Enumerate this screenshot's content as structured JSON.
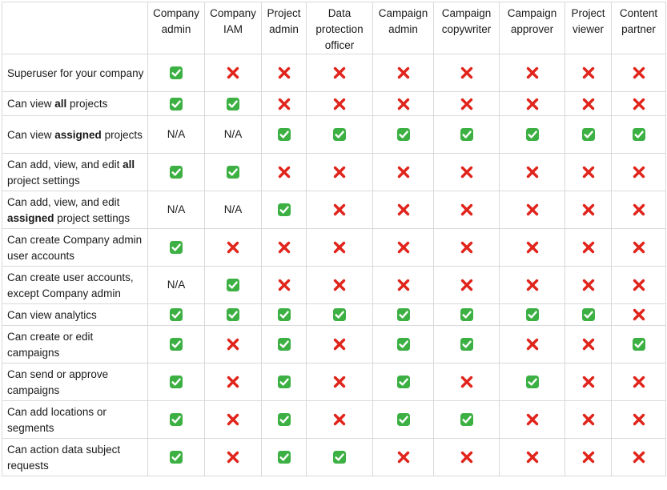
{
  "table": {
    "columns": [
      "Company admin",
      "Company IAM",
      "Project admin",
      "Data protection officer",
      "Campaign admin",
      "Campaign copywriter",
      "Campaign approver",
      "Project viewer",
      "Content partner"
    ],
    "rows": [
      {
        "label": [
          {
            "t": "Superuser for your company"
          }
        ],
        "values": [
          "yes",
          "no",
          "no",
          "no",
          "no",
          "no",
          "no",
          "no",
          "no"
        ]
      },
      {
        "label": [
          {
            "t": "Can view "
          },
          {
            "t": "all",
            "b": true
          },
          {
            "t": " projects"
          }
        ],
        "values": [
          "yes",
          "yes",
          "no",
          "no",
          "no",
          "no",
          "no",
          "no",
          "no"
        ]
      },
      {
        "label": [
          {
            "t": "Can view "
          },
          {
            "t": "assigned",
            "b": true
          },
          {
            "t": " projects"
          }
        ],
        "values": [
          "N/A",
          "N/A",
          "yes",
          "yes",
          "yes",
          "yes",
          "yes",
          "yes",
          "yes"
        ]
      },
      {
        "label": [
          {
            "t": "Can add, view, and edit "
          },
          {
            "t": "all",
            "b": true
          },
          {
            "t": " project settings"
          }
        ],
        "values": [
          "yes",
          "yes",
          "no",
          "no",
          "no",
          "no",
          "no",
          "no",
          "no"
        ]
      },
      {
        "label": [
          {
            "t": "Can add, view, and edit "
          },
          {
            "t": "assigned",
            "b": true
          },
          {
            "t": " project settings"
          }
        ],
        "values": [
          "N/A",
          "N/A",
          "yes",
          "no",
          "no",
          "no",
          "no",
          "no",
          "no"
        ]
      },
      {
        "label": [
          {
            "t": "Can create Company admin user accounts"
          }
        ],
        "values": [
          "yes",
          "no",
          "no",
          "no",
          "no",
          "no",
          "no",
          "no",
          "no"
        ]
      },
      {
        "label": [
          {
            "t": "Can create user accounts, except Company admin"
          }
        ],
        "values": [
          "N/A",
          "yes",
          "no",
          "no",
          "no",
          "no",
          "no",
          "no",
          "no"
        ]
      },
      {
        "label": [
          {
            "t": "Can view analytics"
          }
        ],
        "values": [
          "yes",
          "yes",
          "yes",
          "yes",
          "yes",
          "yes",
          "yes",
          "yes",
          "no"
        ]
      },
      {
        "label": [
          {
            "t": "Can create or edit campaigns"
          }
        ],
        "values": [
          "yes",
          "no",
          "yes",
          "no",
          "yes",
          "yes",
          "no",
          "no",
          "yes"
        ]
      },
      {
        "label": [
          {
            "t": "Can send or approve campaigns"
          }
        ],
        "values": [
          "yes",
          "no",
          "yes",
          "no",
          "yes",
          "no",
          "yes",
          "no",
          "no"
        ]
      },
      {
        "label": [
          {
            "t": "Can add locations or segments"
          }
        ],
        "values": [
          "yes",
          "no",
          "yes",
          "no",
          "yes",
          "yes",
          "no",
          "no",
          "no"
        ]
      },
      {
        "label": [
          {
            "t": "Can action data subject requests"
          }
        ],
        "values": [
          "yes",
          "no",
          "yes",
          "yes",
          "no",
          "no",
          "no",
          "no",
          "no"
        ]
      }
    ]
  },
  "icons": {
    "yes": "check-mark-button-icon",
    "no": "cross-mark-icon"
  },
  "colors": {
    "check_bg": "#3cb043",
    "check_mark": "#ffffff",
    "cross": "#e0241b",
    "border": "#d9d9d9",
    "text": "#1a1a1a"
  }
}
